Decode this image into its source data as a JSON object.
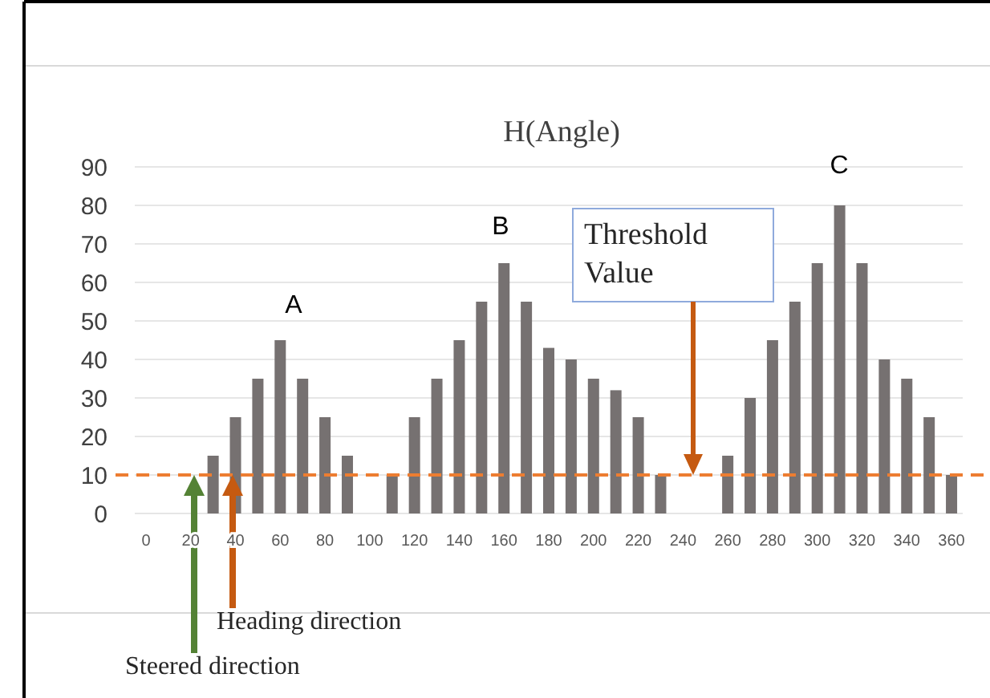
{
  "chart_data": {
    "type": "bar",
    "title": "H(Angle)",
    "x": [
      30,
      40,
      50,
      60,
      70,
      80,
      90,
      110,
      120,
      130,
      140,
      150,
      160,
      170,
      180,
      190,
      200,
      210,
      220,
      230,
      260,
      270,
      280,
      290,
      300,
      310,
      320,
      330,
      340,
      350,
      360
    ],
    "values": [
      15,
      25,
      35,
      45,
      35,
      25,
      15,
      10,
      25,
      35,
      45,
      55,
      65,
      55,
      43,
      40,
      35,
      32,
      25,
      10,
      15,
      30,
      45,
      55,
      65,
      80,
      65,
      40,
      35,
      25,
      10
    ],
    "color": "#767171",
    "xlim": [
      -5,
      365
    ],
    "xticks": [
      0,
      20,
      40,
      60,
      80,
      100,
      120,
      140,
      160,
      180,
      200,
      220,
      240,
      260,
      280,
      300,
      320,
      340,
      360
    ],
    "ylim": [
      0,
      90
    ],
    "yticks": [
      0,
      10,
      20,
      30,
      40,
      50,
      60,
      70,
      80,
      90
    ],
    "grid": "y",
    "ref_lines": [
      {
        "axis": "y",
        "value": 10,
        "color": "#ed7d31",
        "line_style": "dashed"
      }
    ],
    "annotations": [
      "A",
      "B",
      "C",
      "Threshold Value",
      "Heading direction",
      "Steered direction"
    ]
  }
}
